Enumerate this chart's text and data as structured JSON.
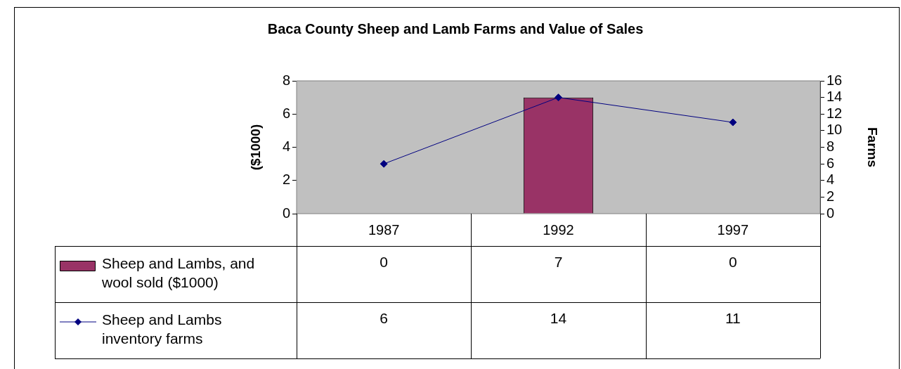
{
  "chart_data": {
    "type": "bar",
    "title": "Baca County Sheep and Lamb Farms and Value of Sales",
    "categories": [
      "1987",
      "1992",
      "1997"
    ],
    "series": [
      {
        "name": "Sheep and Lambs, and wool sold ($1000)",
        "color": "#993366",
        "values": [
          0,
          7,
          0
        ]
      },
      {
        "name": "Sheep and Lambs inventory farms",
        "type": "line",
        "axis": "y2",
        "color": "#000080",
        "marker": "diamond",
        "values": [
          6,
          14,
          11
        ]
      }
    ],
    "ylabel": "($1000)",
    "y2label": "Farms",
    "ylim": [
      0,
      8
    ],
    "yticks": [
      0,
      2,
      4,
      6,
      8
    ],
    "y2lim": [
      0,
      16
    ],
    "y2ticks": [
      0,
      2,
      4,
      6,
      8,
      10,
      12,
      14,
      16
    ],
    "grid": false,
    "legend": "bottom",
    "data_labels": true
  }
}
